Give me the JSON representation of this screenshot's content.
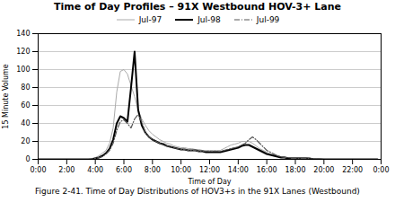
{
  "chart_data": {
    "type": "line",
    "title": "Time of Day Profiles – 91X Westbound HOV-3+ Lane",
    "xlabel": "Time of Day",
    "ylabel": "15 Minute Volume",
    "caption": "Figure 2-41. Time of Day Distributions of HOV3+s in the 91X Lanes (Westbound)",
    "x": [
      0,
      1,
      2,
      3,
      4,
      5,
      6,
      7,
      8,
      9,
      10,
      11,
      12,
      13,
      14,
      15,
      16,
      17,
      18,
      19,
      20,
      21,
      22,
      23,
      24,
      25,
      26,
      27,
      28,
      29,
      30,
      31,
      32,
      33,
      34,
      35,
      36,
      37,
      38,
      39,
      40,
      41,
      42,
      43,
      44,
      45,
      46,
      47,
      48,
      49,
      50,
      51,
      52,
      53,
      54,
      55,
      56,
      57,
      58,
      59,
      60,
      61,
      62,
      63,
      64,
      65,
      66,
      67,
      68,
      69,
      70,
      71,
      72,
      73,
      74,
      75,
      76,
      77,
      78,
      79,
      80,
      81,
      82,
      83,
      84,
      85,
      86,
      87,
      88,
      89,
      90,
      91,
      92,
      93,
      94,
      95
    ],
    "xlim": [
      0,
      96
    ],
    "xticks": [
      {
        "value": 0,
        "label": "0:00"
      },
      {
        "value": 8,
        "label": "2:00"
      },
      {
        "value": 16,
        "label": "4:00"
      },
      {
        "value": 24,
        "label": "6:00"
      },
      {
        "value": 32,
        "label": "8:00"
      },
      {
        "value": 40,
        "label": "10:00"
      },
      {
        "value": 48,
        "label": "12:00"
      },
      {
        "value": 56,
        "label": "14:00"
      },
      {
        "value": 64,
        "label": "16:00"
      },
      {
        "value": 72,
        "label": "18:00"
      },
      {
        "value": 80,
        "label": "20:00"
      },
      {
        "value": 88,
        "label": "22:00"
      },
      {
        "value": 96,
        "label": "0:00"
      }
    ],
    "ylim": [
      0,
      140
    ],
    "yticks": [
      0,
      20,
      40,
      60,
      80,
      100,
      120,
      140
    ],
    "grid": true,
    "legend": "top",
    "series": [
      {
        "name": "Jul-97",
        "color": "#aaaaaa",
        "line_style": "solid",
        "values": [
          0,
          0,
          0,
          0,
          0,
          0,
          0,
          0,
          0,
          0,
          0,
          0,
          0,
          0,
          0,
          1,
          2,
          4,
          7,
          10,
          18,
          35,
          75,
          98,
          100,
          95,
          82,
          70,
          55,
          45,
          38,
          32,
          28,
          25,
          22,
          20,
          18,
          17,
          15,
          14,
          13,
          13,
          12,
          12,
          11,
          11,
          10,
          10,
          10,
          10,
          10,
          10,
          12,
          14,
          16,
          17,
          18,
          20,
          20,
          20,
          18,
          15,
          12,
          10,
          8,
          6,
          5,
          4,
          3,
          3,
          2,
          2,
          2,
          2,
          2,
          2,
          1,
          1,
          1,
          1,
          0,
          0,
          0,
          0,
          0,
          0,
          0,
          0,
          0,
          0,
          0,
          0,
          0,
          0,
          0,
          0
        ]
      },
      {
        "name": "Jul-98",
        "color": "#000000",
        "line_style": "solid",
        "values": [
          0,
          0,
          0,
          0,
          0,
          0,
          0,
          0,
          0,
          0,
          0,
          0,
          0,
          0,
          0,
          0,
          1,
          2,
          4,
          7,
          12,
          22,
          40,
          48,
          46,
          42,
          80,
          120,
          55,
          38,
          30,
          25,
          22,
          20,
          18,
          17,
          15,
          14,
          13,
          12,
          11,
          11,
          10,
          10,
          10,
          9,
          9,
          8,
          8,
          8,
          8,
          8,
          9,
          10,
          11,
          12,
          13,
          15,
          16,
          16,
          14,
          12,
          10,
          8,
          6,
          5,
          4,
          3,
          2,
          2,
          1,
          1,
          1,
          1,
          1,
          1,
          1,
          0,
          0,
          0,
          0,
          0,
          0,
          0,
          0,
          0,
          0,
          0,
          0,
          0,
          0,
          0,
          0,
          0,
          0,
          0
        ]
      },
      {
        "name": "Jul-99",
        "color": "#555555",
        "line_style": "dashdot",
        "values": [
          0,
          0,
          0,
          0,
          0,
          0,
          0,
          0,
          0,
          0,
          0,
          0,
          0,
          0,
          0,
          0,
          1,
          2,
          3,
          6,
          10,
          18,
          32,
          42,
          44,
          40,
          35,
          45,
          50,
          42,
          30,
          25,
          22,
          20,
          18,
          16,
          15,
          14,
          13,
          12,
          11,
          11,
          10,
          10,
          10,
          9,
          9,
          9,
          9,
          9,
          9,
          9,
          10,
          11,
          12,
          13,
          14,
          16,
          18,
          22,
          25,
          22,
          18,
          14,
          10,
          8,
          6,
          4,
          3,
          2,
          2,
          1,
          1,
          1,
          1,
          1,
          1,
          0,
          0,
          0,
          0,
          0,
          0,
          0,
          0,
          0,
          0,
          0,
          0,
          0,
          0,
          0,
          0,
          0,
          0,
          0
        ]
      }
    ]
  }
}
